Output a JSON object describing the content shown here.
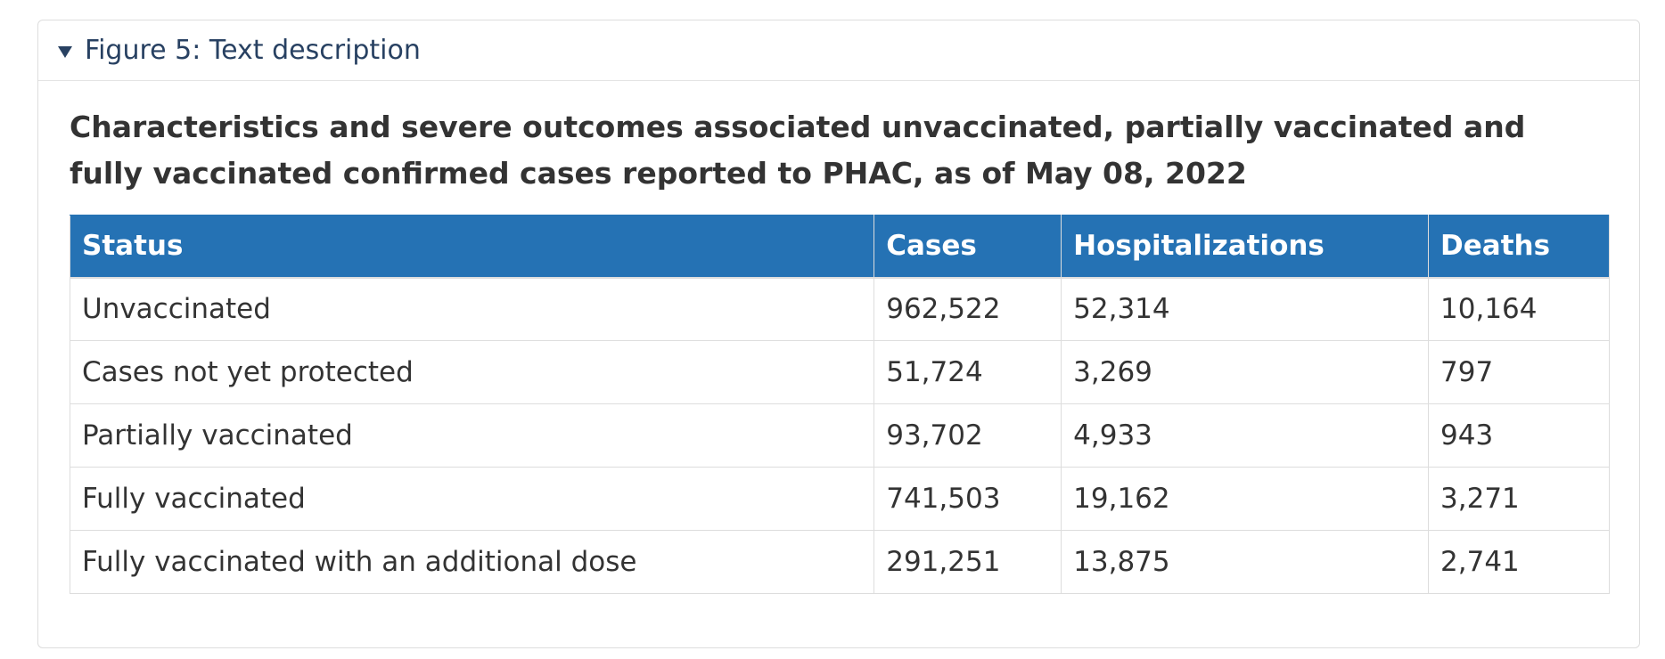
{
  "details": {
    "summary_label": "Figure 5: Text description"
  },
  "table": {
    "caption": "Characteristics and severe outcomes associated unvaccinated, partially vaccinated and fully vaccinated confirmed cases reported to PHAC, as of May 08, 2022",
    "headers": [
      "Status",
      "Cases",
      "Hospitalizations",
      "Deaths"
    ],
    "rows": [
      [
        "Unvaccinated",
        "962,522",
        "52,314",
        "10,164"
      ],
      [
        "Cases not yet protected",
        "51,724",
        "3,269",
        "797"
      ],
      [
        "Partially vaccinated",
        "93,702",
        "4,933",
        "943"
      ],
      [
        "Fully vaccinated",
        "741,503",
        "19,162",
        "3,271"
      ],
      [
        "Fully vaccinated with an additional dose",
        "291,251",
        "13,875",
        "2,741"
      ]
    ]
  }
}
